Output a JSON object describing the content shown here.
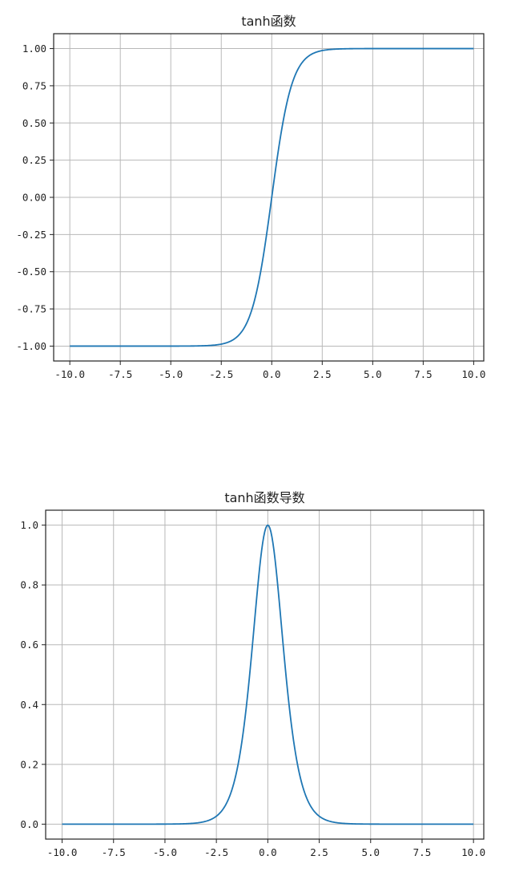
{
  "chart_data": [
    {
      "type": "line",
      "title": "tanh函数",
      "xlabel": "",
      "ylabel": "",
      "xlim": [
        -10.8,
        10.5
      ],
      "ylim": [
        -1.1,
        1.1
      ],
      "grid": true,
      "xticks": [
        -10,
        -7.5,
        -5,
        -2.5,
        0,
        2.5,
        5,
        7.5,
        10
      ],
      "xtick_labels": [
        "-10.0",
        "-7.5",
        "-5.0",
        "-2.5",
        "0.0",
        "2.5",
        "5.0",
        "7.5",
        "10.0"
      ],
      "yticks": [
        -1,
        -0.75,
        -0.5,
        -0.25,
        0,
        0.25,
        0.5,
        0.75,
        1
      ],
      "ytick_labels": [
        "-1.00",
        "-0.75",
        "-0.50",
        "-0.25",
        "0.00",
        "0.25",
        "0.50",
        "0.75",
        "1.00"
      ],
      "series": [
        {
          "color": "#1f77b4",
          "x": [
            -10,
            -8,
            -6,
            -4,
            -3,
            -2.5,
            -2,
            -1.5,
            -1,
            -0.5,
            0,
            0.5,
            1,
            1.5,
            2,
            2.5,
            3,
            4,
            6,
            8,
            10
          ],
          "y": [
            -1.0,
            -1.0,
            -1.0,
            -0.999,
            -0.995,
            -0.987,
            -0.964,
            -0.905,
            -0.762,
            -0.462,
            0.0,
            0.462,
            0.762,
            0.905,
            0.964,
            0.987,
            0.995,
            0.999,
            1.0,
            1.0,
            1.0
          ]
        }
      ]
    },
    {
      "type": "line",
      "title": "tanh函数导数",
      "xlabel": "",
      "ylabel": "",
      "xlim": [
        -10.8,
        10.5
      ],
      "ylim": [
        -0.05,
        1.05
      ],
      "grid": true,
      "xticks": [
        -10,
        -7.5,
        -5,
        -2.5,
        0,
        2.5,
        5,
        7.5,
        10
      ],
      "xtick_labels": [
        "-10.0",
        "-7.5",
        "-5.0",
        "-2.5",
        "0.0",
        "2.5",
        "5.0",
        "7.5",
        "10.0"
      ],
      "yticks": [
        0,
        0.2,
        0.4,
        0.6,
        0.8,
        1.0
      ],
      "ytick_labels": [
        "0.0",
        "0.2",
        "0.4",
        "0.6",
        "0.8",
        "1.0"
      ],
      "series": [
        {
          "color": "#1f77b4",
          "x": [
            -10,
            -8,
            -6,
            -4,
            -3,
            -2.5,
            -2,
            -1.5,
            -1,
            -0.5,
            0,
            0.5,
            1,
            1.5,
            2,
            2.5,
            3,
            4,
            6,
            8,
            10
          ],
          "y": [
            0.0,
            0.0,
            0.0,
            0.001,
            0.01,
            0.026,
            0.071,
            0.181,
            0.42,
            0.786,
            1.0,
            0.786,
            0.42,
            0.181,
            0.071,
            0.026,
            0.01,
            0.001,
            0.0,
            0.0,
            0.0
          ]
        }
      ]
    }
  ]
}
